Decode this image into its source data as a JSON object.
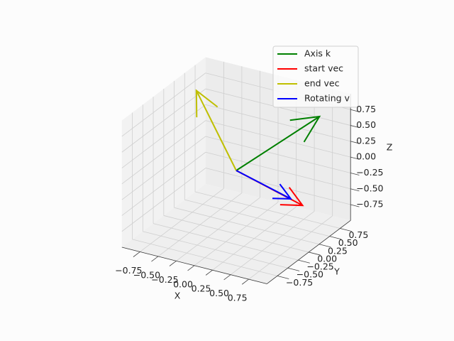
{
  "chart_data": {
    "type": "quiver3d",
    "xlabel": "X",
    "ylabel": "Y",
    "zlabel": "Z",
    "xlim": [
      -1,
      1
    ],
    "ylim": [
      -1,
      1
    ],
    "zlim": [
      -1,
      1
    ],
    "xticks": [
      {
        "value": -0.75,
        "label": "−0.75"
      },
      {
        "value": -0.5,
        "label": "−0.50"
      },
      {
        "value": -0.25,
        "label": "−0.25"
      },
      {
        "value": 0,
        "label": "0.00"
      },
      0.25,
      {
        "value": 0.5,
        "label": "0.50"
      },
      0.75
    ],
    "yticks": [
      {
        "value": -0.75,
        "label": "−0.75"
      },
      {
        "value": -0.5,
        "label": "−0.50"
      },
      {
        "value": -0.25,
        "label": "−0.25"
      },
      {
        "value": 0,
        "label": "0.00"
      },
      0.25,
      {
        "value": 0.5,
        "label": "0.50"
      },
      0.75
    ],
    "zticks": [
      {
        "value": -0.75,
        "label": "−0.75"
      },
      {
        "value": -0.5,
        "label": "−0.50"
      },
      {
        "value": -0.25,
        "label": "−0.25"
      },
      {
        "value": 0,
        "label": "0.00"
      },
      0.25,
      {
        "value": 0.5,
        "label": "0.50"
      },
      0.75
    ],
    "grid": true,
    "legend": "upper right",
    "series": [
      {
        "name": "Axis k",
        "color": "#008000",
        "values": [
          0.6,
          0.95,
          0.55
        ]
      },
      {
        "name": "start vec",
        "color": "#ff0000",
        "values": [
          0.8,
          0.2,
          -0.42
        ]
      },
      {
        "name": "end vec",
        "color": "#bfbf00",
        "values": [
          -0.7,
          0.26,
          0.93
        ]
      },
      {
        "name": "Rotating v",
        "color": "#0000ff",
        "values": [
          0.65,
          0.18,
          -0.35
        ]
      }
    ]
  }
}
